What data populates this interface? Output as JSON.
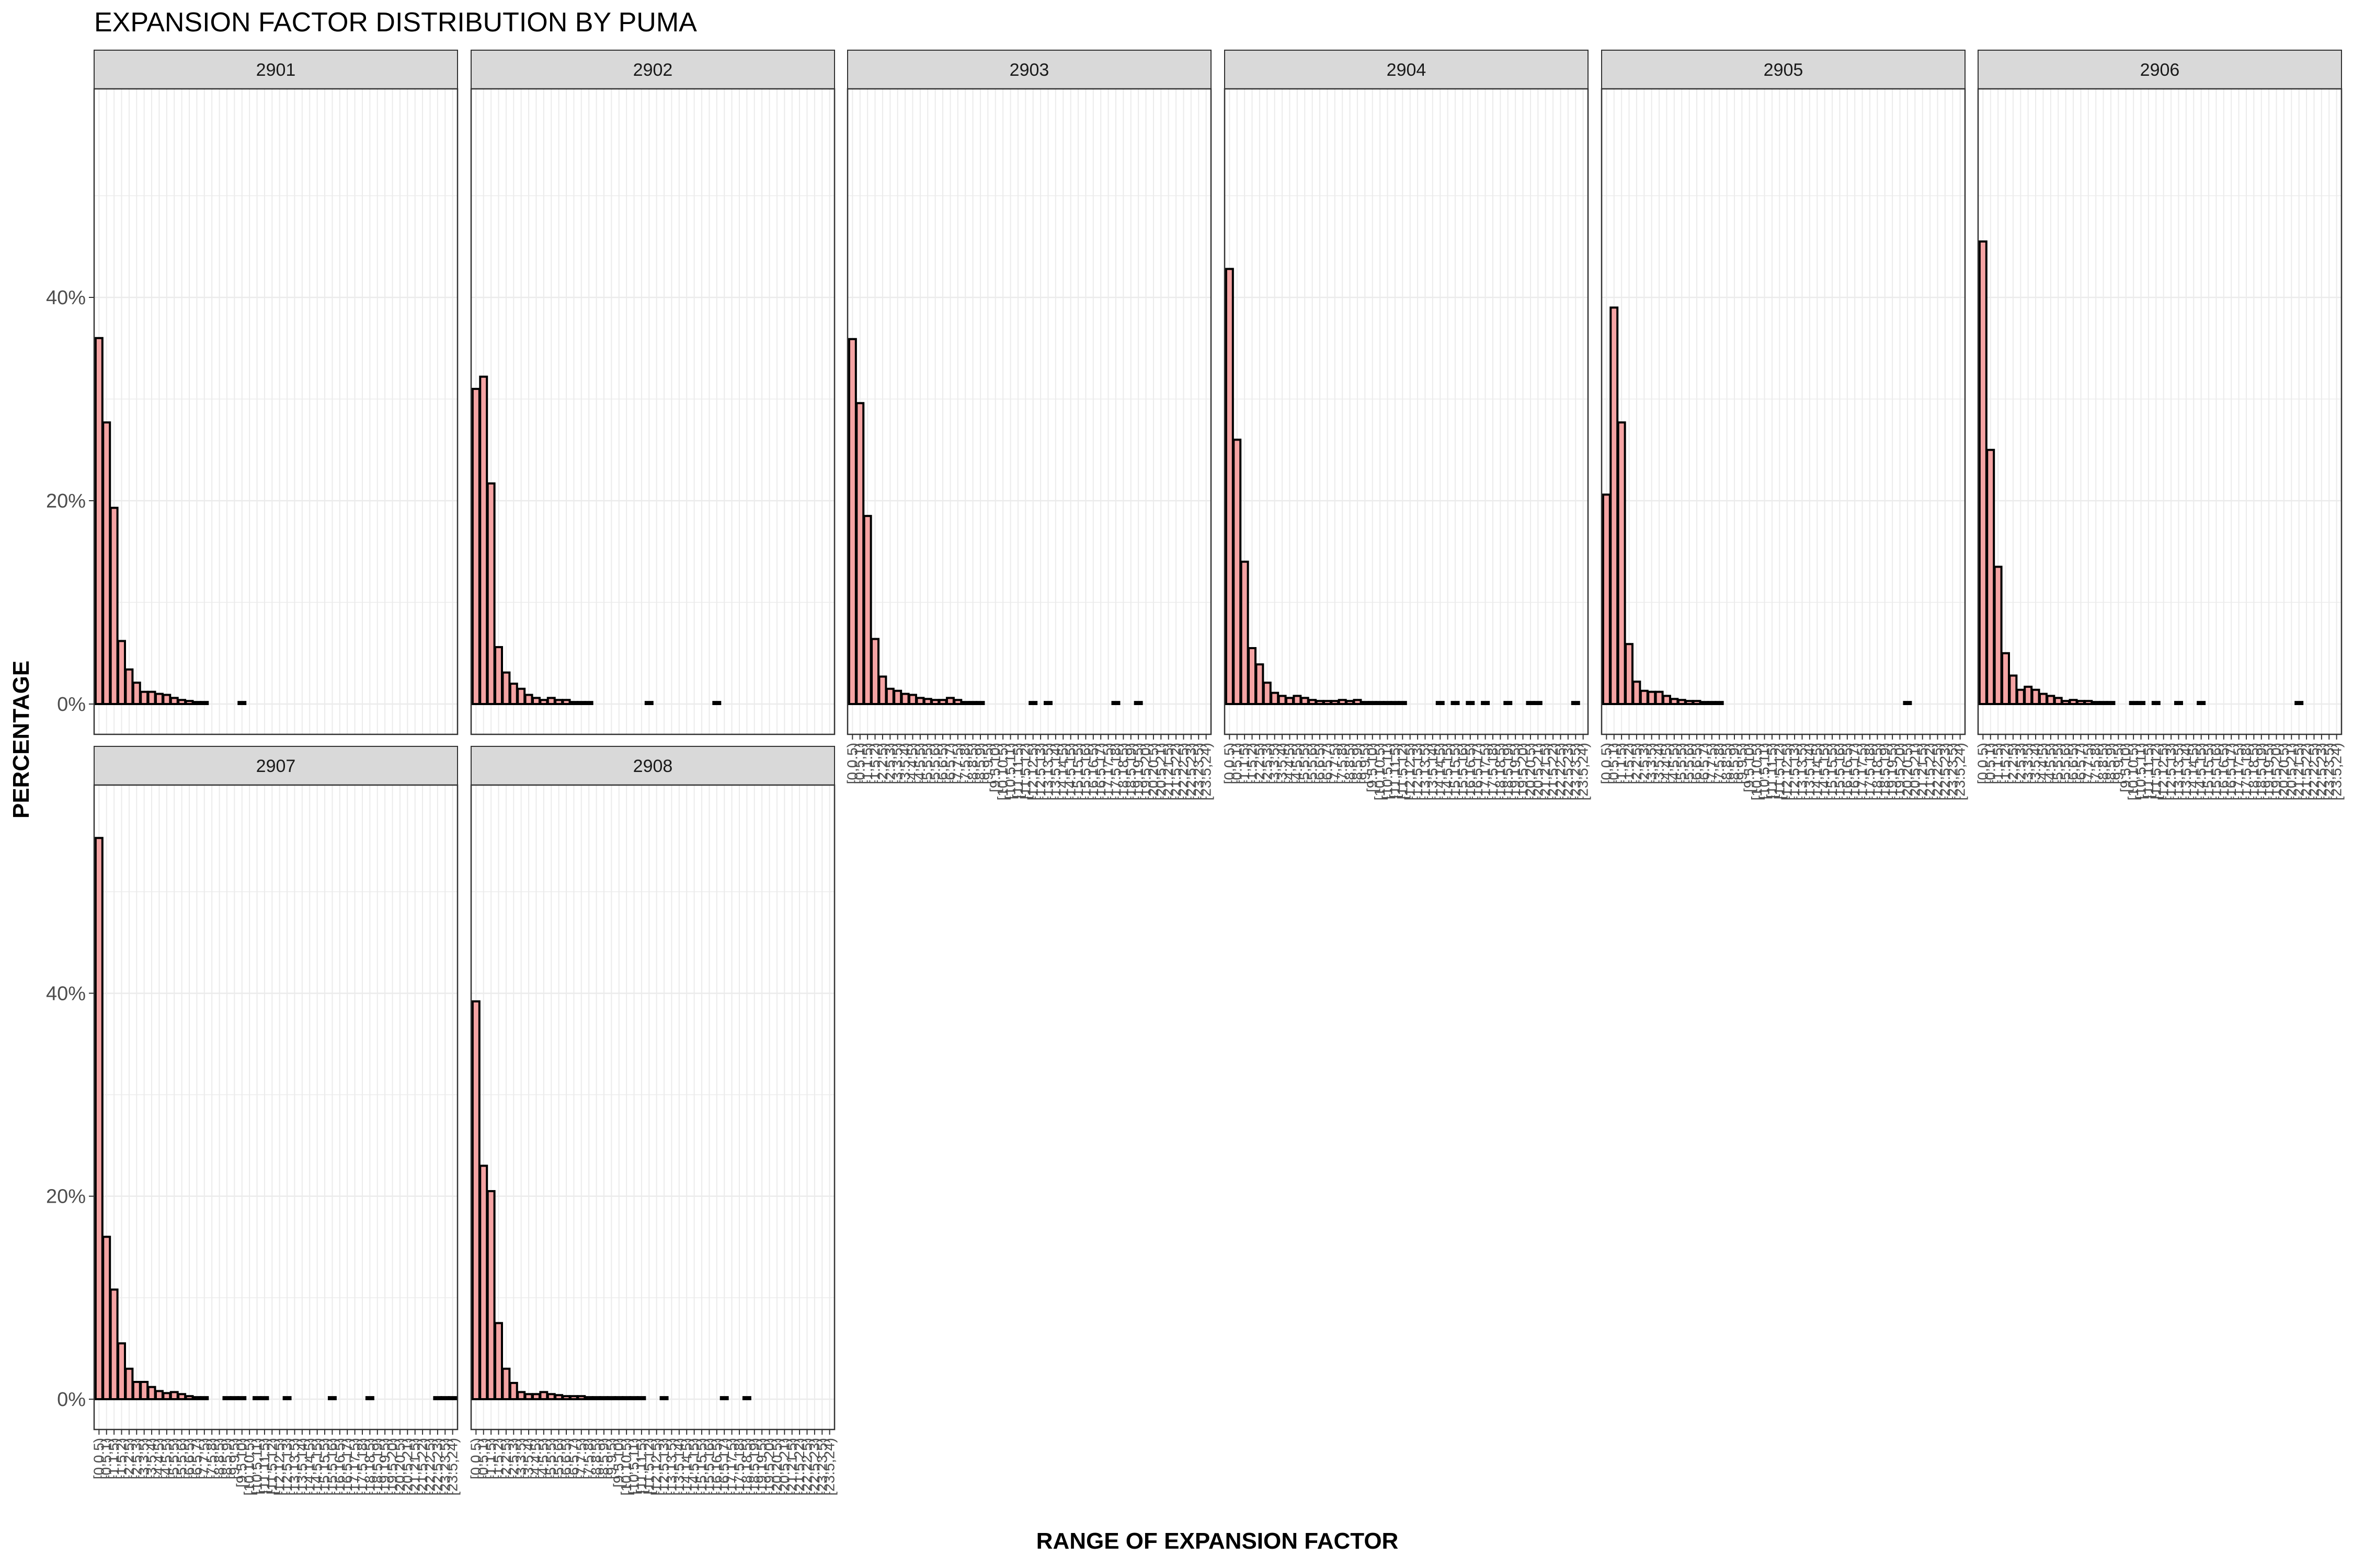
{
  "chart_data": {
    "type": "bar",
    "title": "EXPANSION FACTOR DISTRIBUTION BY PUMA",
    "xlabel": "RANGE OF EXPANSION FACTOR",
    "ylabel": "PERCENTAGE",
    "ylim": [
      0,
      0.6
    ],
    "yticks": [
      0,
      0.2,
      0.4
    ],
    "ytick_labels": [
      "0%",
      "20%",
      "40%"
    ],
    "grid": true,
    "bar_fill": "#f4a3a3",
    "bar_stroke": "#000000",
    "categories": [
      "[0,0.5)",
      "[0.5,1)",
      "[1,1.5)",
      "[1.5,2)",
      "[2,2.5)",
      "[2.5,3)",
      "[3,3.5)",
      "[3.5,4)",
      "[4,4.5)",
      "[4.5,5)",
      "[5,5.5)",
      "[5.5,6)",
      "[6,6.5)",
      "[6.5,7)",
      "[7,7.5)",
      "[7.5,8)",
      "[8,8.5)",
      "[8.5,9)",
      "[9,9.5)",
      "[9.5,10)",
      "[10,10.5)",
      "[10.5,11)",
      "[11,11.5)",
      "[11.5,12)",
      "[12,12.5)",
      "[12.5,13)",
      "[13,13.5)",
      "[13.5,14)",
      "[14,14.5)",
      "[14.5,15)",
      "[15,15.5)",
      "[15.5,16)",
      "[16,16.5)",
      "[16.5,17)",
      "[17,17.5)",
      "[17.5,18)",
      "[18,18.5)",
      "[18.5,19)",
      "[19,19.5)",
      "[19.5,20)",
      "[20,20.5)",
      "[20.5,21)",
      "[21,21.5)",
      "[21.5,22)",
      "[22,22.5)",
      "[22.5,23)",
      "[23,23.5)",
      "[23.5,24)"
    ],
    "series": [
      {
        "name": "2901",
        "values": [
          0.36,
          0.277,
          0.193,
          0.062,
          0.034,
          0.021,
          0.012,
          0.012,
          0.01,
          0.009,
          0.006,
          0.004,
          0.003,
          0.002,
          0.002,
          0,
          0,
          0,
          0,
          0.002,
          0,
          0,
          0,
          0,
          0,
          0,
          0,
          0,
          0,
          0,
          0,
          0,
          0,
          0,
          0,
          0,
          0,
          0,
          0,
          0,
          0,
          0,
          0,
          0,
          0,
          0,
          0,
          0
        ]
      },
      {
        "name": "2902",
        "values": [
          0.31,
          0.322,
          0.217,
          0.056,
          0.031,
          0.02,
          0.015,
          0.009,
          0.006,
          0.004,
          0.006,
          0.004,
          0.004,
          0.002,
          0.002,
          0.002,
          0,
          0,
          0,
          0,
          0,
          0,
          0,
          0.002,
          0,
          0,
          0,
          0,
          0,
          0,
          0,
          0,
          0.002,
          0,
          0,
          0,
          0,
          0,
          0,
          0,
          0,
          0,
          0,
          0,
          0,
          0,
          0,
          0
        ]
      },
      {
        "name": "2903",
        "values": [
          0.359,
          0.296,
          0.185,
          0.064,
          0.027,
          0.015,
          0.013,
          0.01,
          0.009,
          0.006,
          0.005,
          0.004,
          0.004,
          0.006,
          0.004,
          0.002,
          0.002,
          0.002,
          0,
          0,
          0,
          0,
          0,
          0,
          0.002,
          0,
          0.002,
          0,
          0,
          0,
          0,
          0,
          0,
          0,
          0,
          0.002,
          0,
          0,
          0.002,
          0,
          0,
          0,
          0,
          0,
          0,
          0,
          0,
          0
        ]
      },
      {
        "name": "2904",
        "values": [
          0.428,
          0.26,
          0.14,
          0.055,
          0.039,
          0.021,
          0.011,
          0.008,
          0.006,
          0.008,
          0.006,
          0.004,
          0.003,
          0.003,
          0.003,
          0.004,
          0.003,
          0.004,
          0.002,
          0.002,
          0.002,
          0.002,
          0.002,
          0.002,
          0,
          0,
          0,
          0,
          0.002,
          0,
          0.002,
          0,
          0.002,
          0,
          0.002,
          0,
          0,
          0.002,
          0,
          0,
          0.002,
          0.002,
          0,
          0,
          0,
          0,
          0.002,
          0
        ]
      },
      {
        "name": "2905",
        "values": [
          0.206,
          0.39,
          0.277,
          0.059,
          0.022,
          0.013,
          0.012,
          0.012,
          0.008,
          0.005,
          0.004,
          0.003,
          0.003,
          0.002,
          0.002,
          0.002,
          0,
          0,
          0,
          0,
          0,
          0,
          0,
          0,
          0,
          0,
          0,
          0,
          0,
          0,
          0,
          0,
          0,
          0,
          0,
          0,
          0,
          0,
          0,
          0,
          0.002,
          0,
          0,
          0,
          0,
          0,
          0,
          0
        ]
      },
      {
        "name": "2906",
        "values": [
          0.455,
          0.25,
          0.135,
          0.05,
          0.028,
          0.014,
          0.017,
          0.014,
          0.01,
          0.008,
          0.006,
          0.003,
          0.004,
          0.003,
          0.003,
          0.002,
          0.002,
          0.002,
          0,
          0,
          0.002,
          0.002,
          0,
          0.002,
          0,
          0,
          0.002,
          0,
          0,
          0.002,
          0,
          0,
          0,
          0,
          0,
          0,
          0,
          0,
          0,
          0,
          0,
          0,
          0.002,
          0,
          0,
          0,
          0,
          0
        ]
      },
      {
        "name": "2907",
        "values": [
          0.553,
          0.16,
          0.108,
          0.055,
          0.03,
          0.017,
          0.017,
          0.012,
          0.008,
          0.006,
          0.007,
          0.005,
          0.003,
          0.002,
          0.002,
          0,
          0,
          0.002,
          0.002,
          0.002,
          0,
          0.002,
          0.002,
          0,
          0,
          0.002,
          0,
          0,
          0,
          0,
          0,
          0.002,
          0,
          0,
          0,
          0,
          0.002,
          0,
          0,
          0,
          0,
          0,
          0,
          0,
          0,
          0.002,
          0.002,
          0.002
        ]
      },
      {
        "name": "2908",
        "values": [
          0.392,
          0.23,
          0.205,
          0.075,
          0.03,
          0.016,
          0.007,
          0.005,
          0.005,
          0.007,
          0.005,
          0.004,
          0.003,
          0.003,
          0.003,
          0.002,
          0.002,
          0.002,
          0.002,
          0.002,
          0.002,
          0.002,
          0.002,
          0,
          0,
          0.002,
          0,
          0,
          0,
          0,
          0,
          0,
          0,
          0.002,
          0,
          0,
          0.002,
          0,
          0,
          0,
          0,
          0,
          0,
          0,
          0,
          0,
          0,
          0
        ]
      }
    ]
  }
}
